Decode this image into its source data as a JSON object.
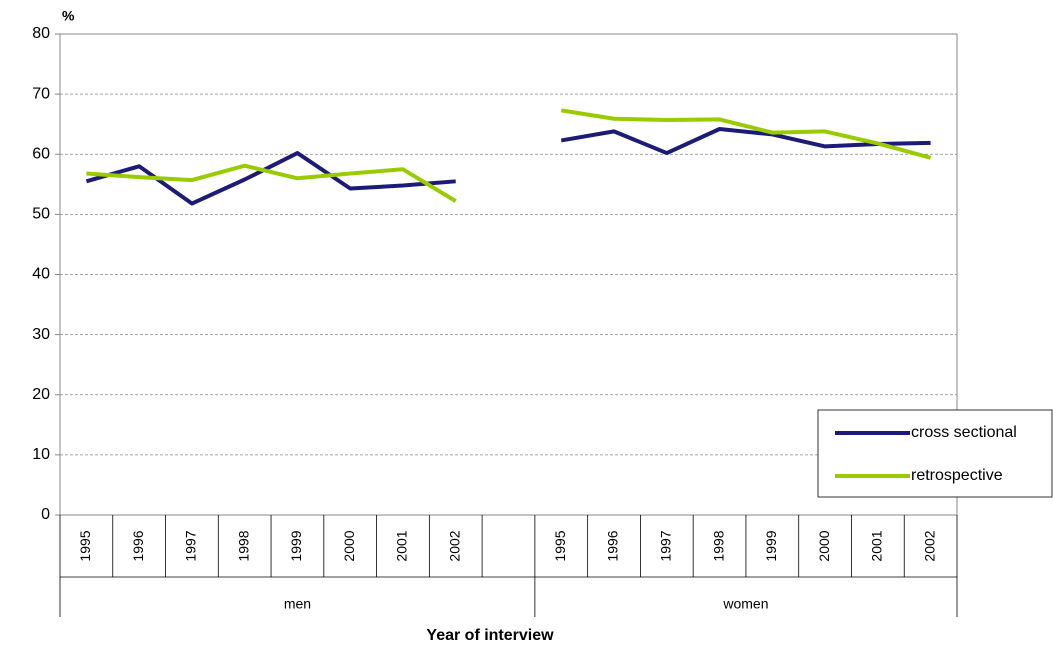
{
  "chart_data": {
    "type": "line",
    "y_label": "%",
    "x_label": "Year of interview",
    "categories": [
      "1995",
      "1996",
      "1997",
      "1998",
      "1999",
      "2000",
      "2001",
      "2002",
      null,
      "1995",
      "1996",
      "1997",
      "1998",
      "1999",
      "2000",
      "2001",
      "2002"
    ],
    "category_groups": [
      "men",
      "women"
    ],
    "series": [
      {
        "name": "cross sectional",
        "color": "#1c1c78",
        "values": [
          55.5,
          58.0,
          51.8,
          55.8,
          60.2,
          54.3,
          54.8,
          55.5,
          null,
          62.3,
          63.8,
          60.2,
          64.2,
          63.3,
          61.3,
          61.7,
          61.9
        ]
      },
      {
        "name": "retrospective",
        "color": "#99cc00",
        "values": [
          56.8,
          56.2,
          55.7,
          58.1,
          56.0,
          56.8,
          57.5,
          52.2,
          null,
          67.3,
          65.9,
          65.7,
          65.8,
          63.6,
          63.8,
          61.8,
          59.4
        ]
      }
    ],
    "ylim": [
      0,
      80
    ],
    "yticks": [
      0,
      10,
      20,
      30,
      40,
      50,
      60,
      70,
      80
    ],
    "grid": true,
    "legend": "lower right"
  }
}
